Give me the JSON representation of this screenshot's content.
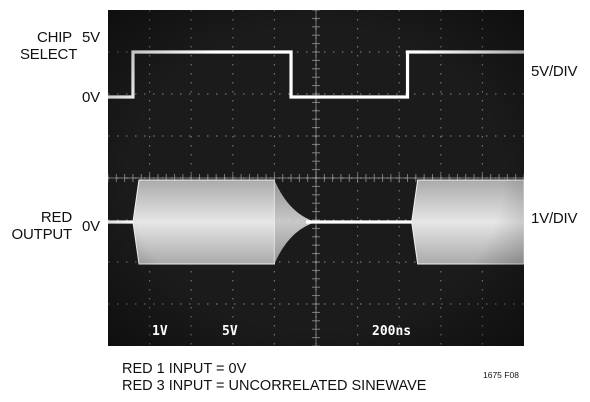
{
  "chart_data": {
    "type": "line",
    "title": "",
    "channels": [
      {
        "name_lines": [
          "CHIP",
          "SELECT"
        ],
        "high_label": "5V",
        "low_label": "0V",
        "scale_label": "5V/DIV",
        "segments": [
          {
            "t": [
              0.0,
              0.6
            ],
            "level": "low"
          },
          {
            "t": [
              0.6,
              4.4
            ],
            "level": "high"
          },
          {
            "t": [
              4.4,
              7.2
            ],
            "level": "low"
          },
          {
            "t": [
              7.2,
              10.0
            ],
            "level": "high"
          }
        ]
      },
      {
        "name_lines": [
          "RED",
          "OUTPUT"
        ],
        "zero_label": "0V",
        "scale_label": "1V/DIV",
        "envelope_bursts": [
          [
            0.6,
            4.0
          ],
          [
            7.3,
            10.0
          ]
        ],
        "decay": [
          4.0,
          5.0
        ]
      }
    ],
    "readout": [
      "1V",
      "5V",
      "200ns"
    ],
    "grid": true,
    "grid_divisions": {
      "x": 10,
      "y": 8
    }
  },
  "caption": [
    "RED 1 INPUT = 0V",
    "RED 3 INPUT = UNCORRELATED SINEWAVE"
  ],
  "figure_id": "1675 F08",
  "colors": {
    "screen": "#1b1b1b",
    "trace": "#ffffff",
    "envelope": "#cfcfcf",
    "grid": "#bbbbbb",
    "graticule_text": "#9a9a9a"
  }
}
